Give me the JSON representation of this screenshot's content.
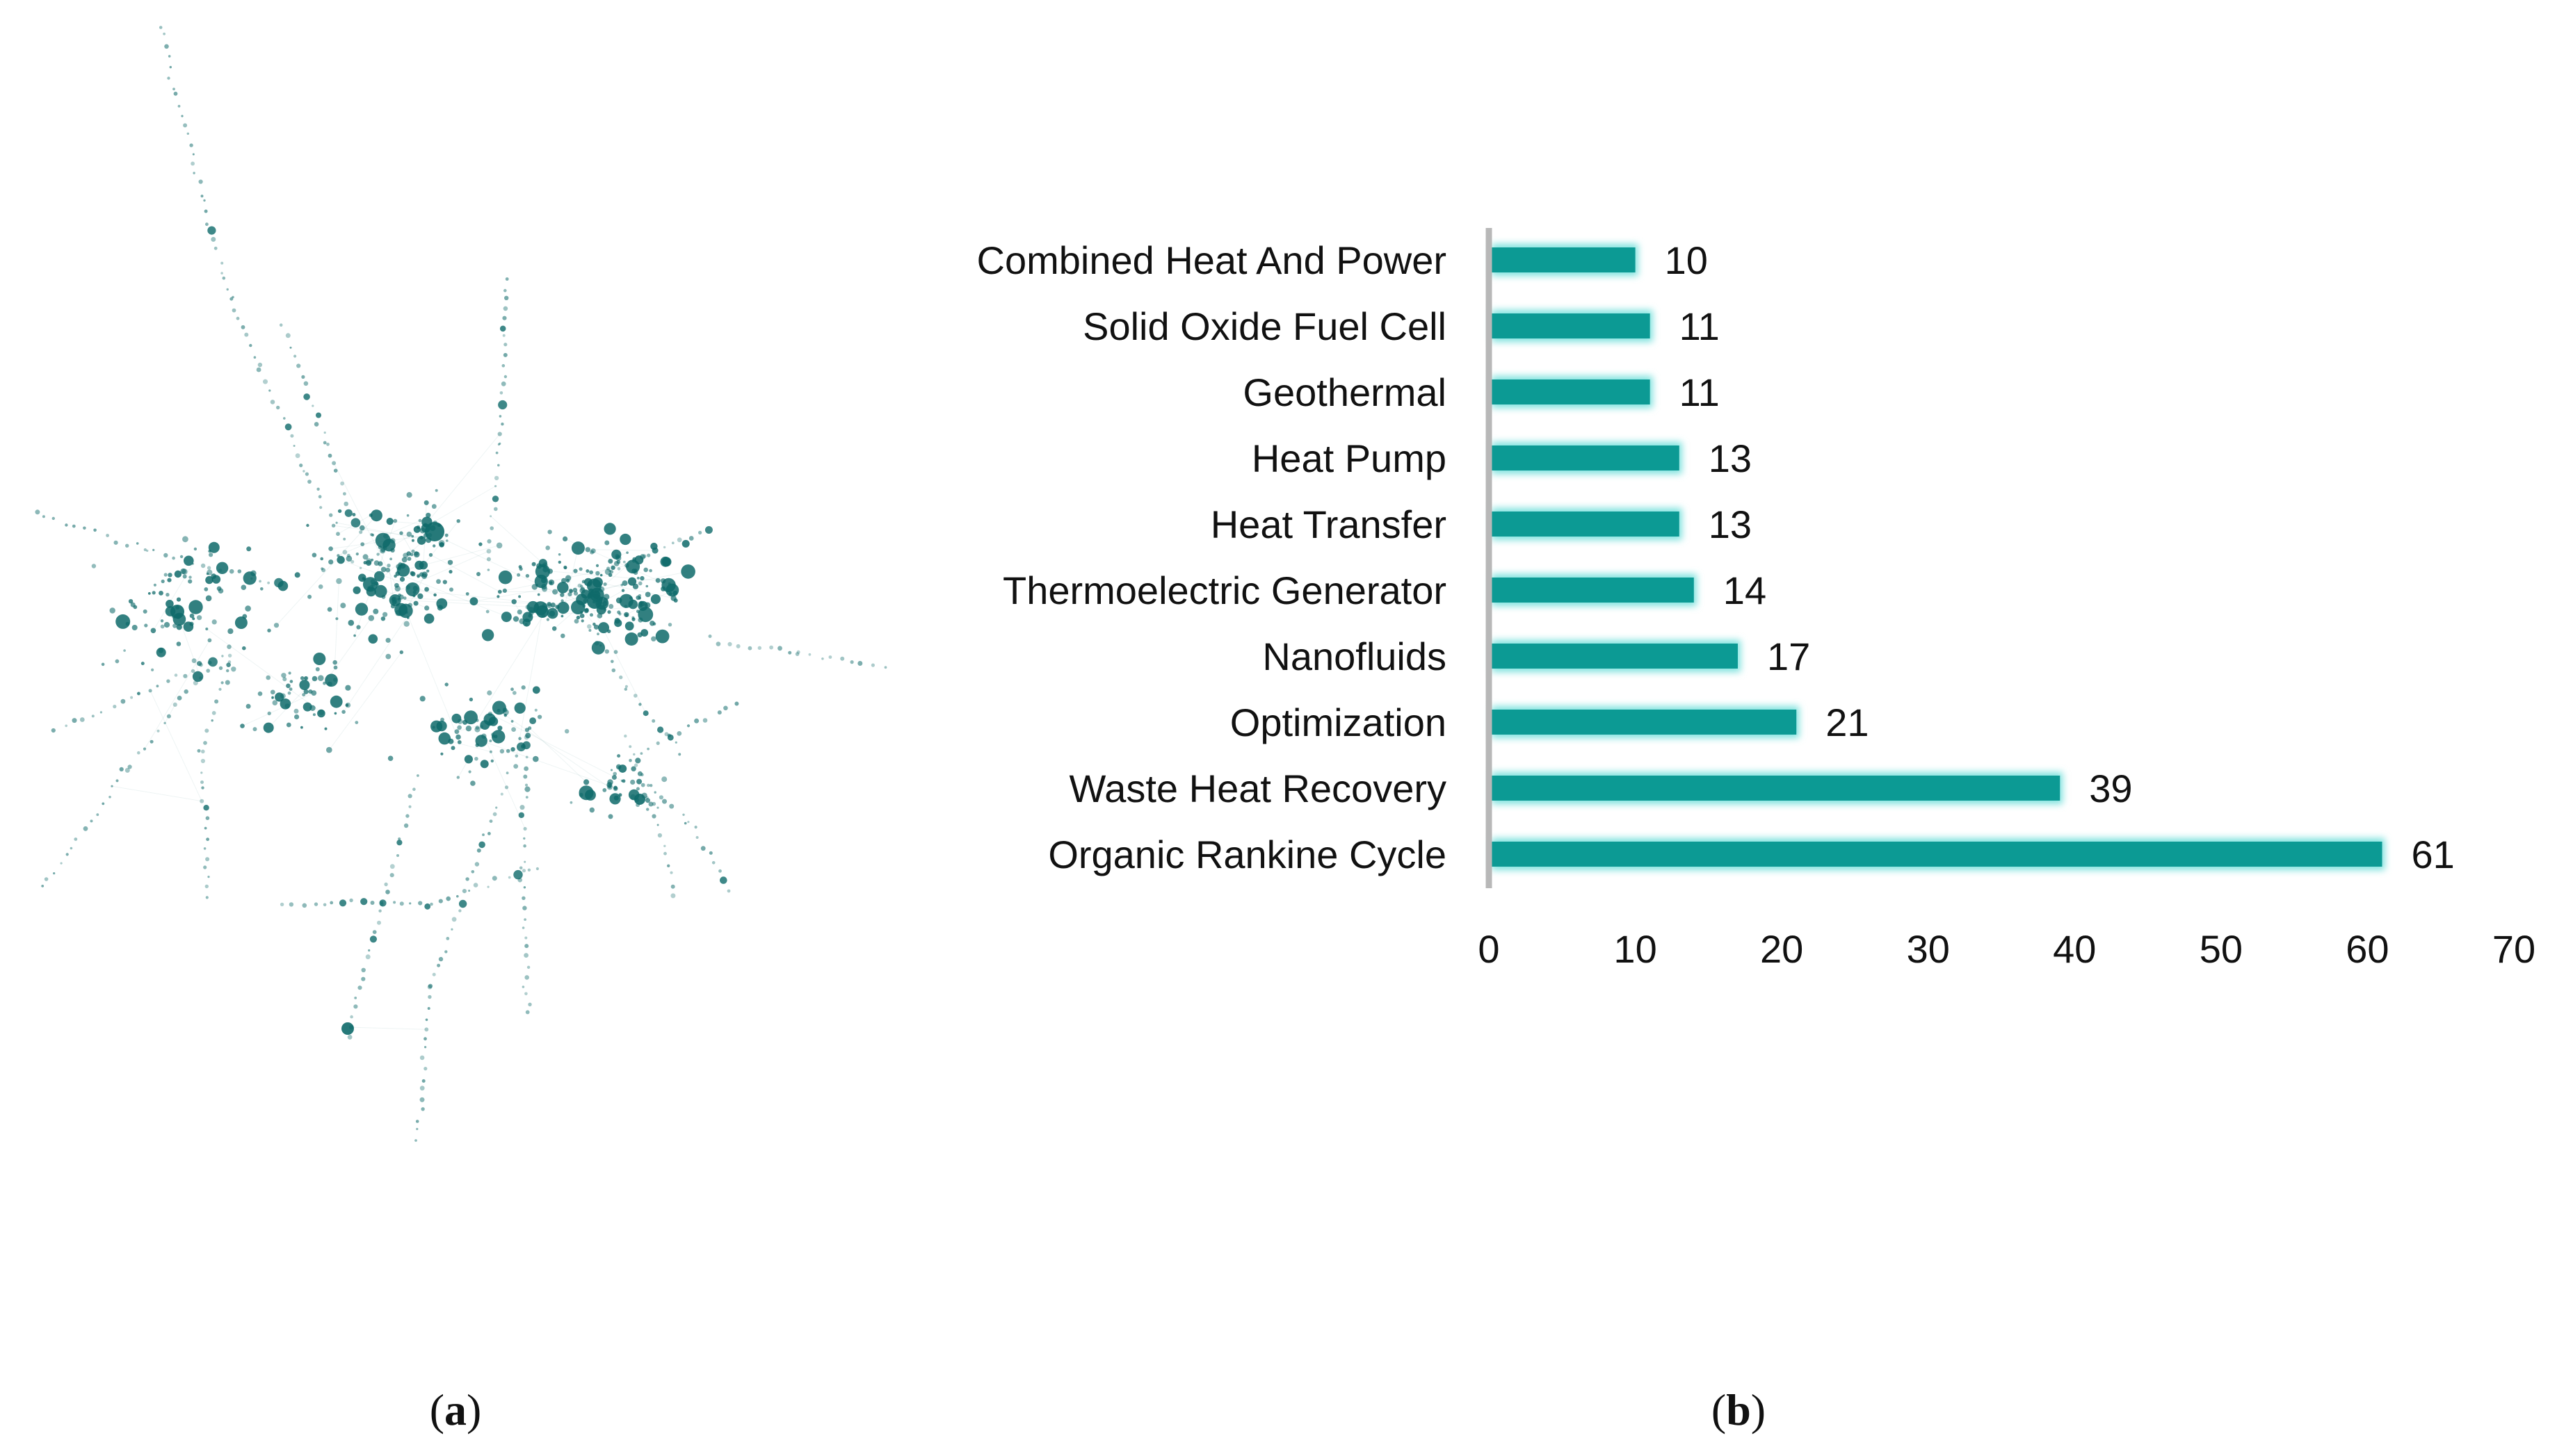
{
  "colors": {
    "bar": "#0c9a94",
    "bar_glow": "#7fe2de",
    "network_node": "#0e6a6a",
    "axis": "#b8b8b8"
  },
  "panels": {
    "a": {
      "open": "(",
      "letter": "a",
      "close": ")"
    },
    "b": {
      "open": "(",
      "letter": "b",
      "close": ")"
    }
  },
  "network": {
    "type": "keyword co-occurrence network",
    "seed": 7
  },
  "chart_data": {
    "type": "bar",
    "orientation": "horizontal",
    "categories": [
      "Combined Heat And Power",
      "Solid Oxide Fuel Cell",
      "Geothermal",
      "Heat Pump",
      "Heat Transfer",
      "Thermoelectric Generator",
      "Nanofluids",
      "Optimization",
      "Waste Heat Recovery",
      "Organic Rankine Cycle "
    ],
    "values": [
      10,
      11,
      11,
      13,
      13,
      14,
      17,
      21,
      39,
      61
    ],
    "xlim": [
      0,
      70
    ],
    "xticks": [
      0,
      10,
      20,
      30,
      40,
      50,
      60,
      70
    ],
    "title": "",
    "xlabel": "",
    "ylabel": "",
    "grid": false,
    "data_labels": true
  }
}
